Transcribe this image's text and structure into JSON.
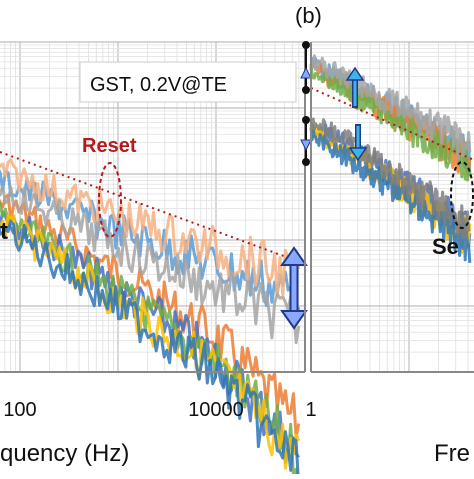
{
  "panel_label_b": "(b)",
  "chart_data": [
    {
      "type": "line",
      "panel": "a",
      "xlabel_visible_fragment": "quency (Hz)",
      "ylabel": "",
      "x_scale": "log",
      "xlim": [
        10,
        70000
      ],
      "y_scale": "log",
      "grid": true,
      "x_ticks": [
        {
          "value": 100,
          "label": "100"
        },
        {
          "value": 10000,
          "label": "10000"
        }
      ],
      "legend_box": "GST, 0.2V@TE",
      "annotations": [
        {
          "text": "Reset",
          "color": "#b31b1b"
        },
        {
          "text": "t",
          "color": "#111111"
        }
      ],
      "reference_line": {
        "style": "dotted",
        "color": "#b31b1b",
        "slope": -1
      },
      "series": [
        {
          "color": "#ed7d31",
          "x": [
            10,
            100,
            1000,
            10000,
            50000
          ],
          "y": [
            0.3,
            0.12,
            0.04,
            0.013,
            0.0035
          ]
        },
        {
          "color": "#4472c4",
          "x": [
            10,
            100,
            1000,
            10000,
            50000
          ],
          "y": [
            0.26,
            0.095,
            0.03,
            0.009,
            0.0022
          ]
        },
        {
          "color": "#70ad47",
          "x": [
            10,
            100,
            1000,
            10000,
            50000
          ],
          "y": [
            0.24,
            0.09,
            0.028,
            0.0085,
            0.0021
          ]
        },
        {
          "color": "#ffc000",
          "x": [
            10,
            100,
            1000,
            10000,
            50000
          ],
          "y": [
            0.22,
            0.08,
            0.024,
            0.0075,
            0.0019
          ]
        },
        {
          "color": "#5b9bd5",
          "x": [
            10,
            100,
            1000,
            10000,
            50000
          ],
          "y": [
            0.35,
            0.18,
            0.085,
            0.045,
            0.03
          ]
        },
        {
          "color": "#f4b183",
          "x": [
            10,
            100,
            1000,
            10000,
            50000
          ],
          "y": [
            0.4,
            0.22,
            0.11,
            0.06,
            0.04
          ]
        },
        {
          "color": "#a5a5a5",
          "x": [
            10,
            100,
            1000,
            10000,
            50000
          ],
          "y": [
            0.33,
            0.15,
            0.065,
            0.03,
            0.018
          ]
        },
        {
          "color": "#2e75b6",
          "x": [
            10,
            100,
            1000,
            10000,
            50000
          ],
          "y": [
            0.2,
            0.075,
            0.022,
            0.0068,
            0.0017
          ]
        }
      ]
    },
    {
      "type": "line",
      "panel": "b",
      "xlabel_visible_fragment": "Fre",
      "x_scale": "log",
      "y_scale": "log",
      "grid": true,
      "x_ticks": [
        {
          "value": 1,
          "label": "1"
        }
      ],
      "annotations": [
        {
          "text": "Se",
          "color": "#111111"
        }
      ],
      "reference_line": {
        "style": "dotted",
        "color": "#b31b1b",
        "slope": -1
      },
      "series": [
        {
          "color": "#5b9bd5",
          "x": [
            1,
            2,
            4,
            8,
            15
          ],
          "y": [
            0.9,
            0.6,
            0.4,
            0.27,
            0.18
          ]
        },
        {
          "color": "#ed7d31",
          "x": [
            1,
            2,
            4,
            8,
            15
          ],
          "y": [
            0.85,
            0.55,
            0.36,
            0.24,
            0.16
          ]
        },
        {
          "color": "#70ad47",
          "x": [
            1,
            2,
            4,
            8,
            15
          ],
          "y": [
            0.8,
            0.52,
            0.34,
            0.22,
            0.15
          ]
        },
        {
          "color": "#a5a5a5",
          "x": [
            1,
            2,
            4,
            8,
            15
          ],
          "y": [
            0.95,
            0.66,
            0.44,
            0.3,
            0.2
          ]
        },
        {
          "color": "#4472c4",
          "x": [
            1,
            2,
            4,
            8,
            15
          ],
          "y": [
            0.3,
            0.2,
            0.12,
            0.075,
            0.045
          ]
        },
        {
          "color": "#ffc000",
          "x": [
            1,
            2,
            4,
            8,
            15
          ],
          "y": [
            0.28,
            0.18,
            0.11,
            0.065,
            0.04
          ]
        },
        {
          "color": "#2e75b6",
          "x": [
            1,
            2,
            4,
            8,
            15
          ],
          "y": [
            0.26,
            0.16,
            0.1,
            0.06,
            0.036
          ]
        },
        {
          "color": "#7f7f7f",
          "x": [
            1,
            2,
            4,
            8,
            15
          ],
          "y": [
            0.32,
            0.22,
            0.13,
            0.08,
            0.05
          ]
        }
      ]
    }
  ]
}
